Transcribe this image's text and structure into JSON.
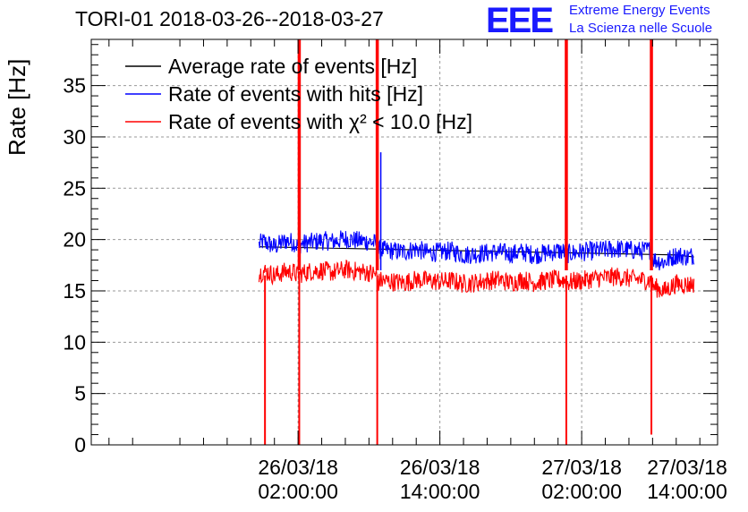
{
  "header": {
    "title": "TORI-01 2018-03-26--2018-03-27",
    "logo_text": "EEE",
    "logo_line1": "Extreme Energy Events",
    "logo_line2": "La Scienza nelle Scuole"
  },
  "colors": {
    "average": "#000000",
    "hits": "#0000ff",
    "chi2": "#ff0000",
    "grid": "#9a9a9a",
    "logo": "#1a1aff"
  },
  "chart_data": {
    "type": "line",
    "title": "TORI-01 2018-03-26--2018-03-27",
    "ylabel": "Rate [Hz]",
    "xlabel": "",
    "xunit": "hours since 2018-03-25 14:00:00",
    "xlim": [
      -5.5,
      47.5
    ],
    "ylim": [
      0,
      39.5
    ],
    "yticks": [
      0,
      5,
      10,
      15,
      20,
      25,
      30,
      35
    ],
    "xticks": [
      {
        "x": 12,
        "date": "26/03/18",
        "time": "02:00:00"
      },
      {
        "x": 24,
        "date": "26/03/18",
        "time": "14:00:00"
      },
      {
        "x": 36,
        "date": "27/03/18",
        "time": "02:00:00"
      },
      {
        "x": 48,
        "date": "27/03/18",
        "time": "14:00:00"
      }
    ],
    "grid": true,
    "legend_position": "top-left",
    "series": [
      {
        "name": "Average rate of events [Hz]",
        "color": "#000000",
        "x": [
          8.7,
          44.0,
          45.5
        ],
        "y": [
          19.3,
          18.5,
          18.3
        ]
      },
      {
        "name": "Rate of events with hits [Hz]",
        "color": "#0000ff",
        "x": [
          8.7,
          9.0,
          9.5,
          10.0,
          11.0,
          11.7,
          11.9,
          12.3,
          13.0,
          14.0,
          15.0,
          16.0,
          17.0,
          18.0,
          18.6,
          18.8,
          19.0,
          20.0,
          21.0,
          22.0,
          23.0,
          24.0,
          25.0,
          26.0,
          27.0,
          28.0,
          29.0,
          30.0,
          31.0,
          32.0,
          33.0,
          34.0,
          34.6,
          34.8,
          35.2,
          36.0,
          37.0,
          38.0,
          39.0,
          40.0,
          41.0,
          41.8,
          42.0,
          42.2,
          43.0,
          44.0,
          45.0,
          45.5
        ],
        "y": [
          19.5,
          19.8,
          19.6,
          19.3,
          19.9,
          19.7,
          19.4,
          19.6,
          19.7,
          19.9,
          19.8,
          20.1,
          19.9,
          19.8,
          19.6,
          18.9,
          19.0,
          18.9,
          18.8,
          19.1,
          18.7,
          18.8,
          18.9,
          18.5,
          18.6,
          18.7,
          18.8,
          18.6,
          18.8,
          18.5,
          18.7,
          18.9,
          18.8,
          18.6,
          18.7,
          18.8,
          18.9,
          19.0,
          19.1,
          19.0,
          18.9,
          19.0,
          18.2,
          18.0,
          17.8,
          18.5,
          18.3,
          18.5
        ]
      },
      {
        "name": "Rate of events with χ² < 10.0 [Hz]",
        "color": "#ff0000",
        "x": [
          8.7,
          9.0,
          9.5,
          10.0,
          11.0,
          11.7,
          11.9,
          12.3,
          13.0,
          14.0,
          15.0,
          16.0,
          17.0,
          18.0,
          18.6,
          18.8,
          19.0,
          20.0,
          21.0,
          22.0,
          23.0,
          24.0,
          25.0,
          26.0,
          27.0,
          28.0,
          29.0,
          30.0,
          31.0,
          32.0,
          33.0,
          34.0,
          34.6,
          34.8,
          35.2,
          36.0,
          37.0,
          38.0,
          39.0,
          40.0,
          41.0,
          41.8,
          42.0,
          42.5,
          43.0,
          44.0,
          45.0,
          45.5
        ],
        "y": [
          16.6,
          16.9,
          16.8,
          16.5,
          16.9,
          16.8,
          16.5,
          16.7,
          16.9,
          17.0,
          16.8,
          17.1,
          16.9,
          16.8,
          16.6,
          15.8,
          16.0,
          15.9,
          15.8,
          16.1,
          16.0,
          15.9,
          16.0,
          15.7,
          15.8,
          16.0,
          16.1,
          15.8,
          16.1,
          15.8,
          16.0,
          16.1,
          16.0,
          15.8,
          15.9,
          16.0,
          16.2,
          16.3,
          16.4,
          16.2,
          16.1,
          16.0,
          15.5,
          15.2,
          15.0,
          15.7,
          15.6,
          15.7
        ]
      }
    ],
    "dropouts": [
      {
        "x": 9.2,
        "y_min": 0
      },
      {
        "x": 12.1,
        "y_min": 0
      },
      {
        "x": 18.7,
        "y_min": 0
      },
      {
        "x": 34.7,
        "y_min": 0
      },
      {
        "x": 41.9,
        "y_min": 1
      }
    ],
    "spikes": [
      {
        "x": 12.1,
        "y": 39.5
      },
      {
        "x": 18.7,
        "y": 39.5
      },
      {
        "x": 34.7,
        "y": 39.5
      },
      {
        "x": 41.9,
        "y": 39.5
      },
      {
        "x": 19.0,
        "y": 28.5
      }
    ]
  }
}
